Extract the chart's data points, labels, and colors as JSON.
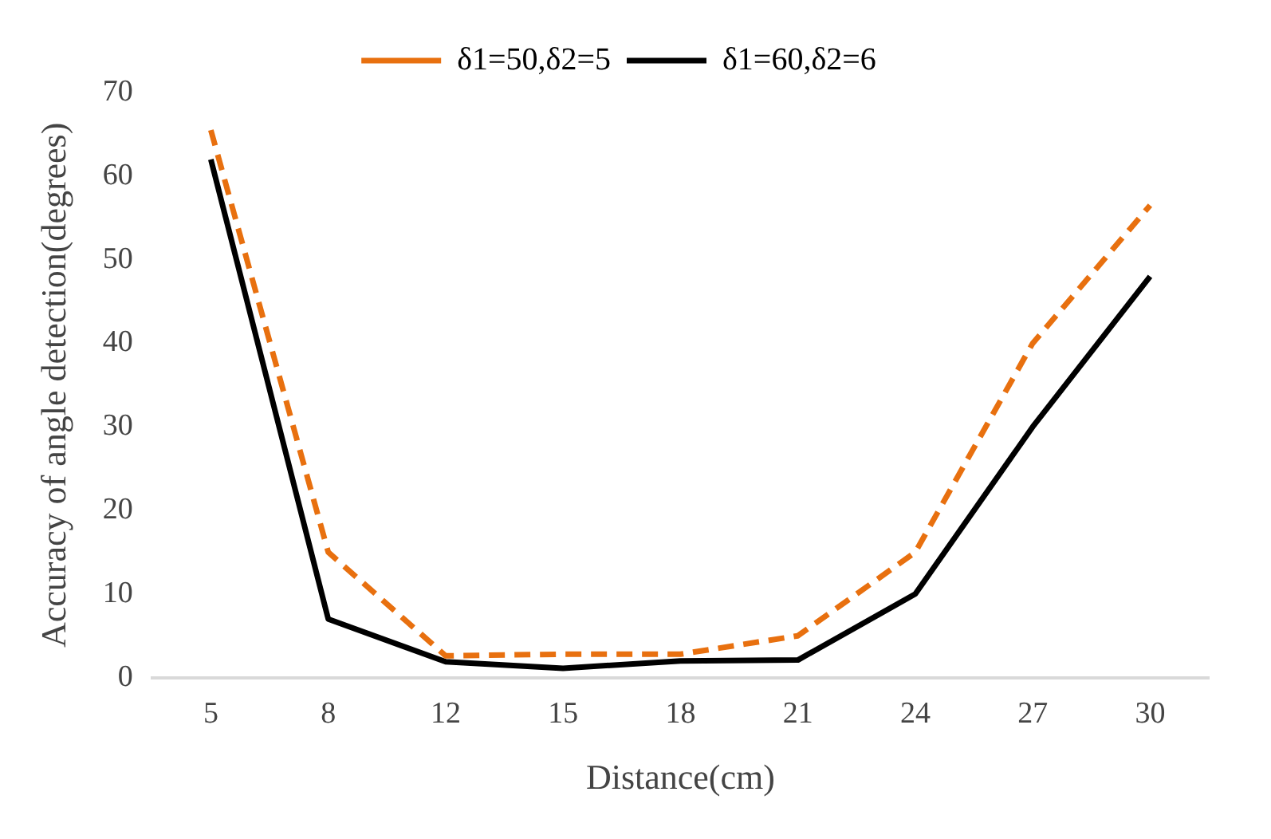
{
  "chart_data": {
    "type": "line",
    "xlabel": "Distance(cm)",
    "ylabel": "Accuracy of angle detection(degrees)",
    "categories": [
      "5",
      "8",
      "12",
      "15",
      "18",
      "21",
      "24",
      "27",
      "30"
    ],
    "series": [
      {
        "name": "δ1=50,δ2=5",
        "color": "#e8700f",
        "line_style": "dashed",
        "values": [
          65.5,
          15,
          2.6,
          2.8,
          2.8,
          5,
          15,
          40,
          56.5
        ]
      },
      {
        "name": "δ1=60,δ2=6",
        "color": "#000000",
        "line_style": "solid",
        "values": [
          62,
          7,
          1.9,
          1.1,
          2,
          2.1,
          10,
          30,
          48
        ]
      }
    ],
    "ylim": [
      0,
      70
    ],
    "yticks": [
      0,
      10,
      20,
      30,
      40,
      50,
      60,
      70
    ],
    "grid": false,
    "legend": "top",
    "marker": "none"
  }
}
